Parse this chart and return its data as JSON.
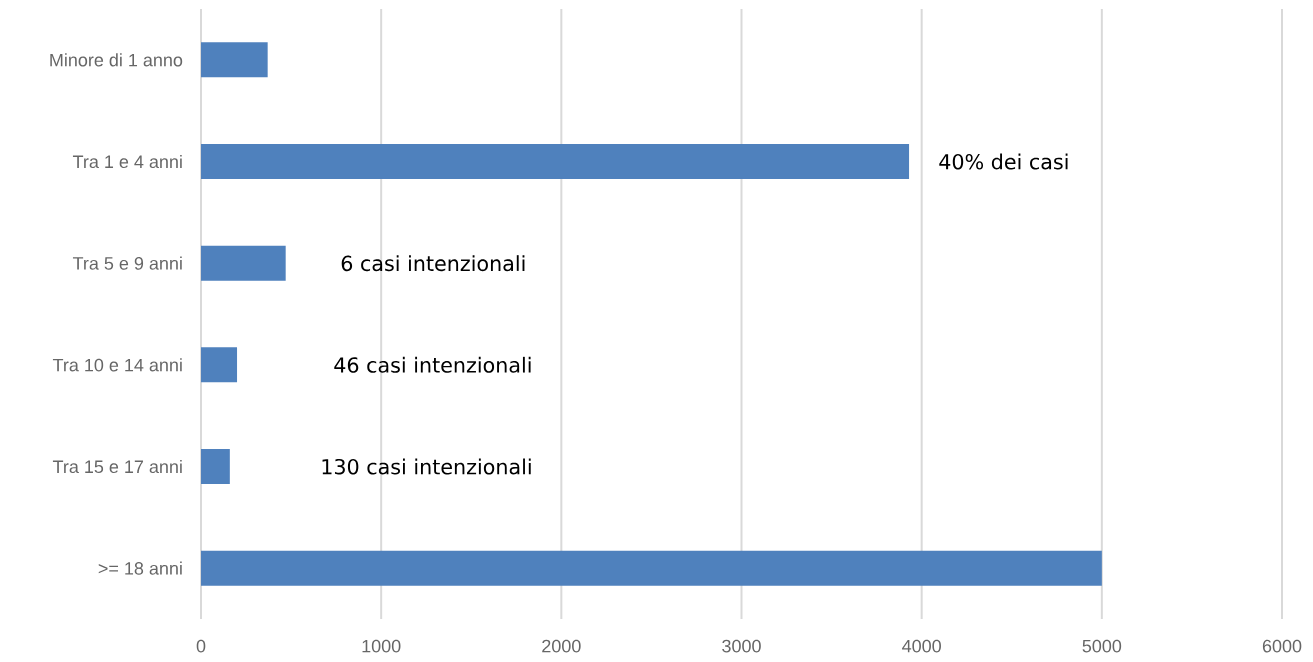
{
  "chart_data": {
    "type": "bar",
    "orientation": "horizontal",
    "categories": [
      "Minore di 1 anno",
      "Tra 1 e 4 anni",
      "Tra 5 e 9 anni",
      "Tra 10 e 14 anni",
      "Tra 15 e 17 anni",
      ">= 18 anni"
    ],
    "values": [
      370,
      3930,
      470,
      200,
      160,
      5000
    ],
    "color": "#4f81bd",
    "xlim": [
      0,
      6000
    ],
    "xticks": [
      0,
      1000,
      2000,
      3000,
      4000,
      5000,
      6000
    ],
    "grid": "x",
    "annotations": [
      "40% dei casi",
      "6 casi intenzionali",
      "46 casi intenzionali",
      "130 casi intenzionali"
    ]
  }
}
